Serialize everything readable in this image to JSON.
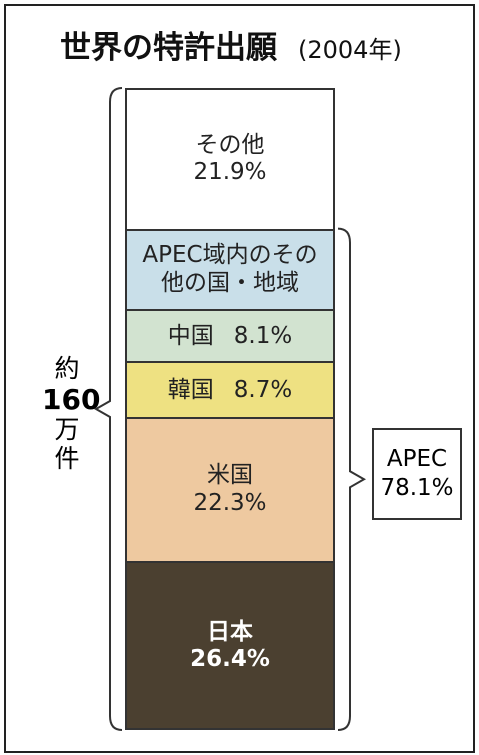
{
  "chart_data": {
    "type": "stacked_column",
    "title": "世界の特許出願",
    "subtitle": "(2004年)",
    "categories": [
      "日本",
      "米国",
      "韓国",
      "中国",
      "APEC域内のその他の国・地域",
      "その他"
    ],
    "values": [
      26.4,
      22.3,
      8.7,
      8.1,
      12.6,
      21.9
    ],
    "value_labels": [
      "26.4%",
      "22.3%",
      "8.7%",
      "8.1%",
      null,
      "21.9%"
    ],
    "colors": [
      "#4b4030",
      "#eec9a0",
      "#eee182",
      "#d2e3d0",
      "#c9dfe9",
      "#ffffff"
    ],
    "text_colors": [
      "#ffffff",
      "#222222",
      "#222222",
      "#222222",
      "#222222",
      "#222222"
    ],
    "ylim": [
      0,
      100
    ],
    "left_note": [
      "約",
      "160",
      "万",
      "件"
    ],
    "right_note": {
      "name": "APEC",
      "value": 78.1,
      "value_label": "78.1%"
    }
  }
}
